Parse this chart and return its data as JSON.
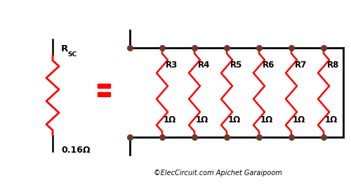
{
  "bg_color": "#ffffff",
  "wire_color": "#000000",
  "resistor_color": "#ff0000",
  "dot_color": "#6B3A2A",
  "text_color": "#000000",
  "equal_color": "#ff0000",
  "title": "©ElecCircuit.com Apichet Garaipoom",
  "rsc_label": "R",
  "rsc_sub": "SC",
  "rsc_value": "0.16Ω",
  "resistor_labels": [
    "R3",
    "R4",
    "R5",
    "R6",
    "R7",
    "R8"
  ],
  "resistor_values": [
    "1Ω",
    "1Ω",
    "1Ω",
    "1Ω",
    "1Ω",
    "1Ω"
  ],
  "fig_width": 5.0,
  "fig_height": 2.63,
  "dpi": 100
}
